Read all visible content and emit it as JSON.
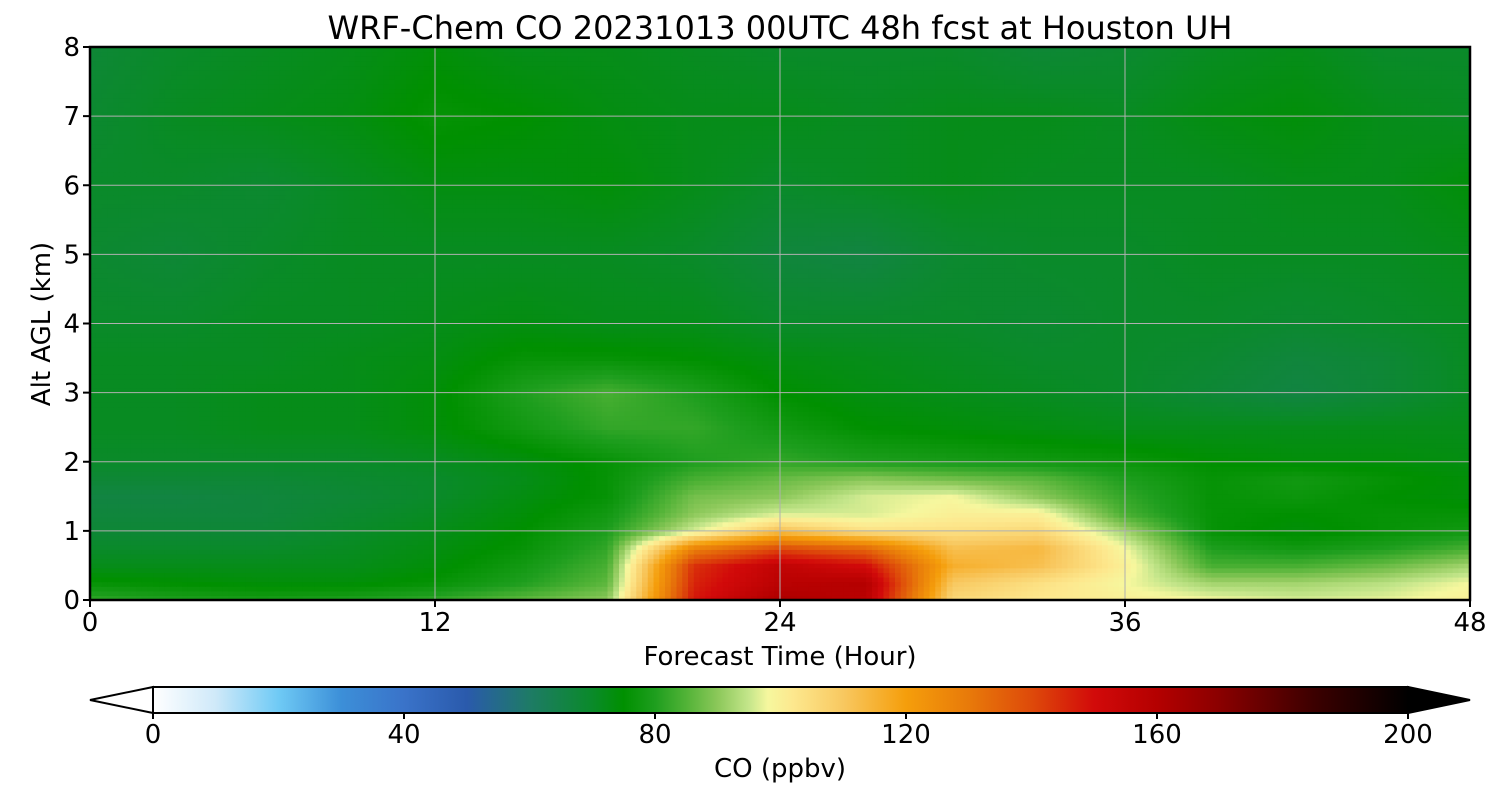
{
  "chart_data": {
    "type": "heatmap",
    "title": "WRF-Chem CO  20231013 00UTC 48h fcst at Houston UH",
    "xlabel": "Forecast Time (Hour)",
    "ylabel": "Alt AGL (km)",
    "xlim": [
      0,
      48
    ],
    "ylim": [
      0,
      8
    ],
    "x_ticks": [
      0,
      12,
      24,
      36,
      48
    ],
    "y_ticks": [
      0,
      1,
      2,
      3,
      4,
      5,
      6,
      7,
      8
    ],
    "grid": true,
    "x_hours": [
      0,
      3,
      6,
      9,
      12,
      15,
      18,
      21,
      24,
      27,
      30,
      33,
      36,
      39,
      42,
      45,
      48
    ],
    "z_km": [
      0,
      0.25,
      0.5,
      0.75,
      1.0,
      1.25,
      1.5,
      1.75,
      2.0,
      2.5,
      3.0,
      3.5,
      4.0,
      5.0,
      6.0,
      7.0,
      8.0
    ],
    "values_ppbv": [
      [
        82,
        80,
        79,
        80,
        82,
        86,
        90,
        148,
        162,
        158,
        106,
        102,
        100,
        98,
        96,
        97,
        100
      ],
      [
        76,
        75,
        74,
        74,
        76,
        80,
        86,
        146,
        158,
        160,
        110,
        104,
        98,
        92,
        92,
        94,
        98
      ],
      [
        72,
        72,
        72,
        72,
        74,
        78,
        84,
        144,
        156,
        150,
        116,
        112,
        100,
        84,
        84,
        87,
        92
      ],
      [
        70,
        70,
        70,
        71,
        73,
        76,
        82,
        128,
        140,
        134,
        112,
        114,
        98,
        80,
        78,
        80,
        84
      ],
      [
        68,
        68,
        68,
        70,
        72,
        75,
        80,
        96,
        112,
        104,
        104,
        106,
        92,
        76,
        74,
        76,
        78
      ],
      [
        67,
        67,
        67,
        69,
        71,
        74,
        78,
        90,
        96,
        96,
        100,
        100,
        84,
        76,
        75,
        76,
        76
      ],
      [
        66,
        66,
        67,
        68,
        70,
        73,
        76,
        88,
        90,
        96,
        98,
        90,
        82,
        76,
        77,
        75,
        74
      ],
      [
        68,
        68,
        68,
        69,
        70,
        72,
        76,
        84,
        87,
        90,
        88,
        86,
        80,
        76,
        78,
        76,
        74
      ],
      [
        70,
        70,
        70,
        70,
        71,
        73,
        76,
        80,
        82,
        80,
        79,
        78,
        77,
        75,
        74,
        74,
        73
      ],
      [
        71,
        71,
        72,
        72,
        74,
        78,
        82,
        82,
        78,
        75,
        74,
        73,
        72,
        72,
        72,
        72,
        72
      ],
      [
        71,
        71,
        72,
        72,
        74,
        80,
        84,
        80,
        75,
        73,
        72,
        71,
        70,
        68,
        66,
        68,
        71
      ],
      [
        71,
        71,
        71,
        72,
        73,
        76,
        76,
        75,
        73,
        72,
        71,
        70,
        70,
        69,
        67,
        68,
        71
      ],
      [
        70,
        70,
        71,
        71,
        72,
        73,
        72,
        72,
        70,
        70,
        70,
        69,
        70,
        70,
        69,
        70,
        71
      ],
      [
        69,
        68,
        70,
        71,
        71,
        71,
        71,
        70,
        67,
        66,
        69,
        70,
        70,
        71,
        71,
        71,
        72
      ],
      [
        70,
        70,
        69,
        71,
        73,
        73,
        74,
        72,
        70,
        71,
        72,
        71,
        71,
        71,
        72,
        72,
        74
      ],
      [
        69,
        71,
        72,
        73,
        76,
        75,
        73,
        72,
        72,
        71,
        72,
        72,
        71,
        73,
        74,
        72,
        71
      ],
      [
        68,
        70,
        71,
        72,
        74,
        72,
        72,
        71,
        70,
        70,
        70,
        68,
        69,
        71,
        72,
        70,
        70
      ]
    ]
  },
  "colorbar": {
    "label": "CO  (ppbv)",
    "min": 0,
    "max": 200,
    "tick_values": [
      0,
      40,
      80,
      120,
      160,
      200
    ],
    "extend": "both",
    "colors": {
      "under": "#ffffff",
      "over": "#000000",
      "stops": [
        [
          0,
          "#ffffff"
        ],
        [
          10,
          "#cfe9f9"
        ],
        [
          20,
          "#6fcaf5"
        ],
        [
          30,
          "#3c8fd8"
        ],
        [
          40,
          "#3a73c9"
        ],
        [
          50,
          "#2a5aac"
        ],
        [
          60,
          "#1e7b66"
        ],
        [
          70,
          "#0a8a2a"
        ],
        [
          75,
          "#009000"
        ],
        [
          80,
          "#1e9e1e"
        ],
        [
          85,
          "#52b337"
        ],
        [
          90,
          "#8cc85a"
        ],
        [
          95,
          "#c5e68b"
        ],
        [
          98,
          "#f6f79e"
        ],
        [
          102,
          "#fde88e"
        ],
        [
          110,
          "#f8c860"
        ],
        [
          120,
          "#f59e0b"
        ],
        [
          130,
          "#e87a0a"
        ],
        [
          140,
          "#de4a0a"
        ],
        [
          150,
          "#d20a0a"
        ],
        [
          160,
          "#b40000"
        ],
        [
          170,
          "#8a0000"
        ],
        [
          185,
          "#3c0000"
        ],
        [
          200,
          "#000000"
        ]
      ]
    }
  }
}
